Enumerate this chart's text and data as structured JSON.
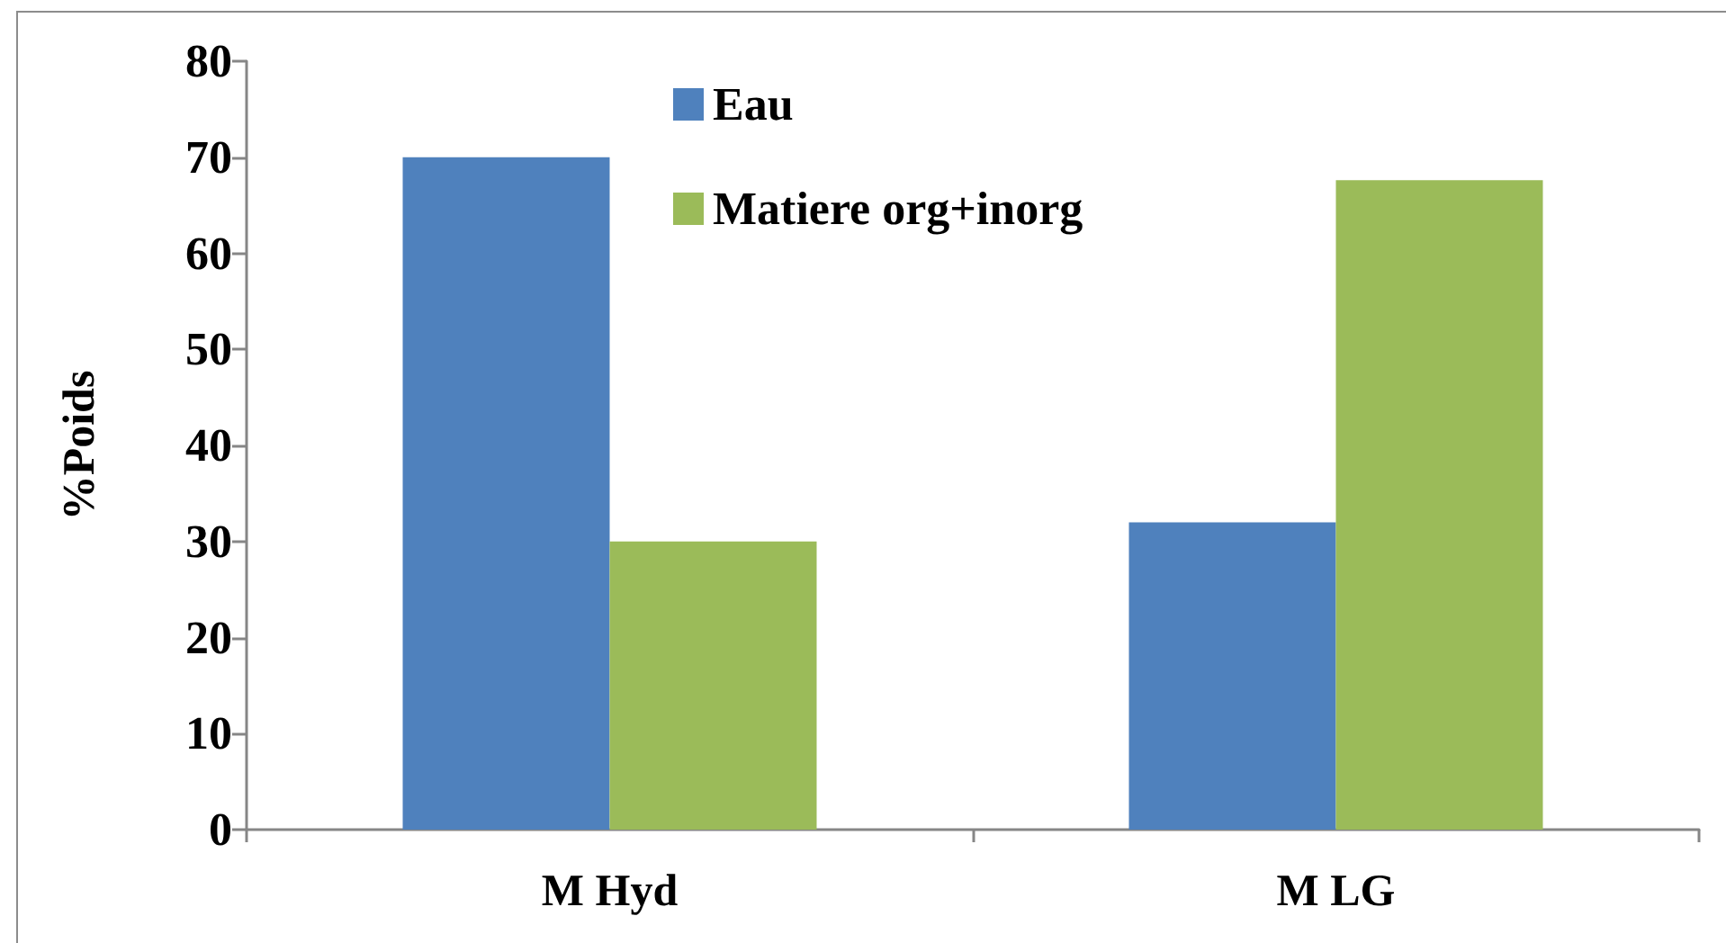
{
  "chart_data": {
    "type": "bar",
    "ylabel": "%Poids",
    "categories": [
      "M Hyd",
      "M LG"
    ],
    "series": [
      {
        "name": "Eau",
        "color": "#4f81bd",
        "values": [
          70,
          32
        ]
      },
      {
        "name": "Matiere org+inorg",
        "color": "#9bbb59",
        "values": [
          30,
          67.6
        ]
      }
    ],
    "ylim": [
      0,
      80
    ],
    "yticks": [
      0,
      10,
      20,
      30,
      40,
      50,
      60,
      70,
      80
    ],
    "legend": "top"
  }
}
